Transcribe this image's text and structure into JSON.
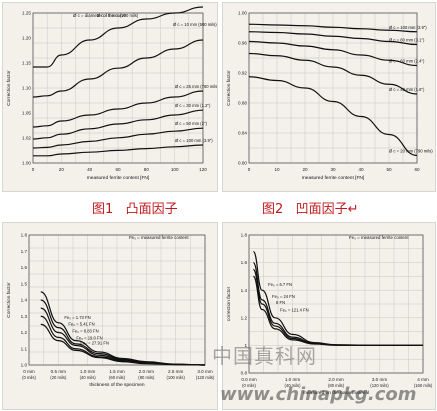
{
  "captions": {
    "fig1": "图1   凸面因子",
    "fig2": "图2   凹面因子↵"
  },
  "watermark": {
    "line1": "中国真科网",
    "line2": "www.chinapkg.com"
  },
  "colors": {
    "caption": "#c0181b",
    "line": "#111111",
    "grid": "#c9c7c0",
    "background": "#f3f1ea"
  },
  "chart_data": [
    {
      "type": "line",
      "ylabel": "Correction factor",
      "xlabel": "measured ferrite content [FN]",
      "xlim": [
        0,
        120
      ],
      "ylim": [
        1.0,
        1.25
      ],
      "xticks": [
        "0",
        "20",
        "40",
        "60",
        "80",
        "100",
        "120"
      ],
      "yticks": [
        "1.00",
        "1.02",
        "1.05",
        "1.10",
        "1.15",
        "1.20",
        "1.25"
      ],
      "grid": true,
      "legend_note": "Ø c = diameter of the curve",
      "series": [
        {
          "name": "Ø c = 5 mm (200 mils)",
          "x": [
            0,
            10,
            20,
            40,
            60,
            80,
            100,
            120
          ],
          "y": [
            1.16,
            1.16,
            1.18,
            1.205,
            1.225,
            1.24,
            1.25,
            1.26
          ]
        },
        {
          "name": "Ø c = 10 mm (500 mils)",
          "x": [
            0,
            10,
            20,
            40,
            60,
            80,
            100,
            120
          ],
          "y": [
            1.11,
            1.112,
            1.12,
            1.14,
            1.158,
            1.175,
            1.19,
            1.205
          ]
        },
        {
          "name": "Ø c = 25 mm (760 mils)",
          "x": [
            0,
            10,
            20,
            40,
            60,
            80,
            100,
            120
          ],
          "y": [
            1.06,
            1.062,
            1.07,
            1.08,
            1.09,
            1.1,
            1.11,
            1.12
          ]
        },
        {
          "name": "Ø c = 30 mm (1.2\")",
          "x": [
            0,
            10,
            20,
            40,
            60,
            80,
            100,
            120
          ],
          "y": [
            1.04,
            1.042,
            1.048,
            1.057,
            1.065,
            1.072,
            1.08,
            1.088
          ]
        },
        {
          "name": "Ø c = 50 mm (2\")",
          "x": [
            0,
            10,
            20,
            40,
            60,
            80,
            100,
            120
          ],
          "y": [
            1.025,
            1.026,
            1.03,
            1.036,
            1.042,
            1.048,
            1.053,
            1.058
          ]
        },
        {
          "name": "Ø c = 100 mm (3.9\")",
          "x": [
            0,
            10,
            20,
            40,
            60,
            80,
            100,
            120
          ],
          "y": [
            1.012,
            1.012,
            1.015,
            1.018,
            1.021,
            1.024,
            1.027,
            1.03
          ]
        }
      ]
    },
    {
      "type": "line",
      "ylabel": "Correction factor",
      "xlabel": "measured ferrite content [FN]",
      "xlim": [
        0,
        60
      ],
      "ylim": [
        0.8,
        1.0
      ],
      "xticks": [
        "0",
        "10",
        "20",
        "30",
        "40",
        "50",
        "60"
      ],
      "yticks": [
        "1.00",
        "0.96",
        "0.92",
        "0.88",
        "0.84",
        "0.80"
      ],
      "grid": true,
      "series": [
        {
          "name": "Ø c = 100 mm (3.9\")",
          "x": [
            0,
            10,
            20,
            30,
            40,
            50,
            60
          ],
          "y": [
            0.985,
            0.984,
            0.983,
            0.981,
            0.979,
            0.977,
            0.975
          ]
        },
        {
          "name": "Ø c = 80 mm (3.1\")",
          "x": [
            0,
            10,
            20,
            30,
            40,
            50,
            60
          ],
          "y": [
            0.975,
            0.974,
            0.972,
            0.969,
            0.966,
            0.962,
            0.958
          ]
        },
        {
          "name": "Ø c = 60 mm (2.4\")",
          "x": [
            0,
            10,
            20,
            30,
            40,
            50,
            60
          ],
          "y": [
            0.962,
            0.96,
            0.956,
            0.951,
            0.944,
            0.937,
            0.93
          ]
        },
        {
          "name": "Ø c = 40 mm (1.6\")",
          "x": [
            0,
            10,
            20,
            30,
            40,
            50,
            60
          ],
          "y": [
            0.946,
            0.943,
            0.937,
            0.928,
            0.917,
            0.905,
            0.892
          ]
        },
        {
          "name": "Ø c = 20 mm (790 mils)",
          "x": [
            0,
            10,
            20,
            30,
            40,
            50,
            60
          ],
          "y": [
            0.915,
            0.91,
            0.9,
            0.882,
            0.862,
            0.838,
            0.81
          ]
        }
      ]
    },
    {
      "type": "line",
      "ylabel": "Correction factor",
      "xlabel": "thickness of the specimen",
      "legend_note": "Fe₀ = measured ferrite content",
      "xlim": [
        0,
        3.0
      ],
      "ylim": [
        1.0,
        1.8
      ],
      "xticks": [
        "0 mm",
        "0.5 mm",
        "1.0 mm",
        "1.5 mm",
        "2.0 mm",
        "2.5 mm",
        "3.0 mm"
      ],
      "xticks2": [
        "(0 mils)",
        "(20 mils)",
        "(40 mils)",
        "(60 mils)",
        "(80 mils)",
        "(100 mils)",
        "(120 mils)"
      ],
      "yticks": [
        "1.0",
        "1.1",
        "1.2",
        "1.3",
        "1.4",
        "1.5",
        "1.6",
        "1.7",
        "1.8"
      ],
      "grid": true,
      "series": [
        {
          "name": "Fe₀ = 1.73 FN",
          "x": [
            0.2,
            0.5,
            0.8,
            1.2,
            1.6,
            2.0,
            2.5,
            3.0
          ],
          "y": [
            1.45,
            1.26,
            1.15,
            1.08,
            1.04,
            1.02,
            1.005,
            1.0
          ]
        },
        {
          "name": "Fe₀ = 5.41 FN",
          "x": [
            0.2,
            0.5,
            0.8,
            1.2,
            1.6,
            2.0,
            2.5,
            3.0
          ],
          "y": [
            1.4,
            1.23,
            1.13,
            1.07,
            1.035,
            1.015,
            1.005,
            1.0
          ]
        },
        {
          "name": "Fe₀ = 8.83 FN",
          "x": [
            0.2,
            0.5,
            0.8,
            1.2,
            1.6,
            2.0,
            2.5,
            3.0
          ],
          "y": [
            1.35,
            1.2,
            1.12,
            1.06,
            1.03,
            1.012,
            1.004,
            1.0
          ]
        },
        {
          "name": "Fe₀ = 19.0 FN",
          "x": [
            0.2,
            0.5,
            0.8,
            1.2,
            1.6,
            2.0,
            2.5,
            3.0
          ],
          "y": [
            1.3,
            1.17,
            1.1,
            1.05,
            1.025,
            1.01,
            1.003,
            1.0
          ]
        },
        {
          "name": "Fe₀ = 27.91 FN",
          "x": [
            0.2,
            0.5,
            0.8,
            1.2,
            1.6,
            2.0,
            2.5,
            3.0
          ],
          "y": [
            1.25,
            1.15,
            1.09,
            1.045,
            1.02,
            1.008,
            1.002,
            1.0
          ]
        }
      ]
    },
    {
      "type": "line",
      "ylabel": "correction factor",
      "xlabel": "measured on the base material",
      "legend_note": "Fe₀ = measured ferrite content",
      "xlim": [
        0,
        4
      ],
      "ylim": [
        0.8,
        1.8
      ],
      "xticks": [
        "0.0 mm",
        "1.0 mm",
        "2.0 mm",
        "3.0 mm",
        "4 mm"
      ],
      "xticks2": [
        "(0 mils)",
        "(40 mils)",
        "(80 mils)",
        "(120 mils)",
        "(160 mils)"
      ],
      "yticks": [
        "0.8",
        "1",
        "1.2",
        "1.4",
        "1.6",
        "1.8"
      ],
      "grid": true,
      "series": [
        {
          "name": "Fe₀ = 6.7 FN",
          "x": [
            0.1,
            0.3,
            0.6,
            1.0,
            1.5,
            2.0,
            3.0,
            4.0
          ],
          "y": [
            1.68,
            1.4,
            1.2,
            1.08,
            1.02,
            1.005,
            1.0,
            1.0
          ]
        },
        {
          "name": "Fe₀ = 24 FN",
          "x": [
            0.1,
            0.3,
            0.6,
            1.0,
            1.5,
            2.0,
            3.0,
            4.0
          ],
          "y": [
            1.6,
            1.33,
            1.16,
            1.06,
            1.015,
            1.003,
            1.0,
            1.0
          ]
        },
        {
          "name": "8 FN",
          "x": [
            0.1,
            0.3,
            0.6,
            1.0,
            1.5,
            2.0,
            3.0,
            4.0
          ],
          "y": [
            1.55,
            1.3,
            1.14,
            1.05,
            1.012,
            1.002,
            1.0,
            1.0
          ]
        },
        {
          "name": "Fe₀ = 121.4 FN",
          "x": [
            0.1,
            0.3,
            0.6,
            1.0,
            1.5,
            2.0,
            3.0,
            4.0
          ],
          "y": [
            1.5,
            1.26,
            1.12,
            1.04,
            1.01,
            1.001,
            1.0,
            1.0
          ]
        }
      ]
    }
  ]
}
